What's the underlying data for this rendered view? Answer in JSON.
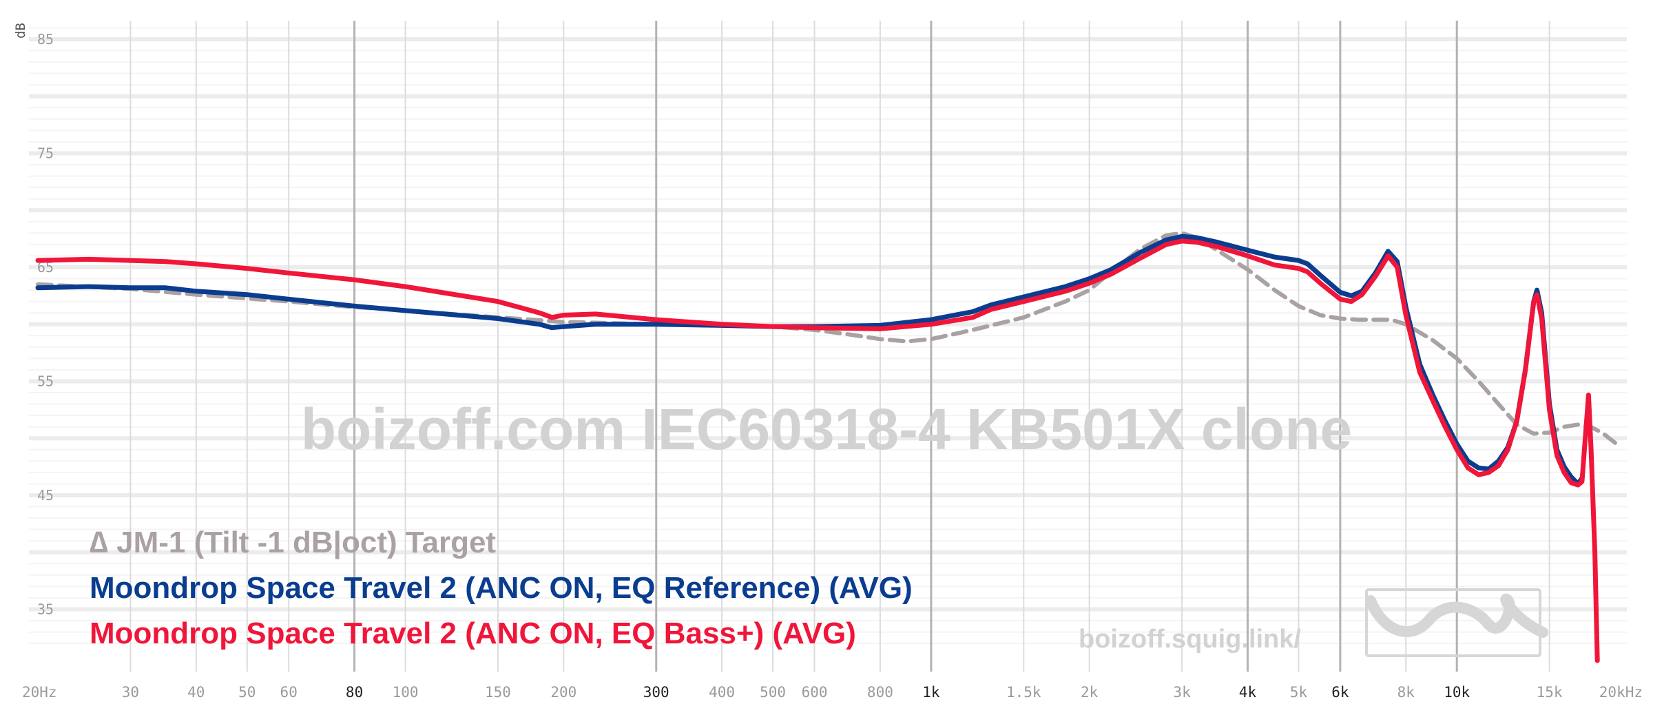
{
  "chart_data": {
    "type": "line",
    "ylabel": "dB",
    "x_scale": "log",
    "xlim": [
      20,
      20000
    ],
    "ylim": [
      30,
      87
    ],
    "grid": true,
    "legend_position": "bottom-left",
    "watermark": "boizoff.com IEC60318-4 KB501X clone",
    "site": "boizoff.squig.link/",
    "y_ticks": [
      {
        "value": 85,
        "label": "85"
      },
      {
        "value": 75,
        "label": "75"
      },
      {
        "value": 65,
        "label": "65"
      },
      {
        "value": 55,
        "label": "55"
      },
      {
        "value": 45,
        "label": "45"
      },
      {
        "value": 35,
        "label": "35"
      }
    ],
    "x_ticks": [
      {
        "value": 20,
        "label": "20Hz",
        "major": false
      },
      {
        "value": 30,
        "label": "30",
        "major": false
      },
      {
        "value": 40,
        "label": "40",
        "major": false
      },
      {
        "value": 50,
        "label": "50",
        "major": false
      },
      {
        "value": 60,
        "label": "60",
        "major": false
      },
      {
        "value": 80,
        "label": "80",
        "major": true
      },
      {
        "value": 100,
        "label": "100",
        "major": false
      },
      {
        "value": 150,
        "label": "150",
        "major": false
      },
      {
        "value": 200,
        "label": "200",
        "major": false
      },
      {
        "value": 300,
        "label": "300",
        "major": true
      },
      {
        "value": 400,
        "label": "400",
        "major": false
      },
      {
        "value": 500,
        "label": "500",
        "major": false
      },
      {
        "value": 600,
        "label": "600",
        "major": false
      },
      {
        "value": 800,
        "label": "800",
        "major": false
      },
      {
        "value": 1000,
        "label": "1k",
        "major": true
      },
      {
        "value": 1500,
        "label": "1.5k",
        "major": false
      },
      {
        "value": 2000,
        "label": "2k",
        "major": false
      },
      {
        "value": 3000,
        "label": "3k",
        "major": false
      },
      {
        "value": 4000,
        "label": "4k",
        "major": true
      },
      {
        "value": 5000,
        "label": "5k",
        "major": false
      },
      {
        "value": 6000,
        "label": "6k",
        "major": true
      },
      {
        "value": 8000,
        "label": "8k",
        "major": false
      },
      {
        "value": 10000,
        "label": "10k",
        "major": true
      },
      {
        "value": 15000,
        "label": "15k",
        "major": false
      },
      {
        "value": 20000,
        "label": "20kHz",
        "major": false
      }
    ],
    "series": [
      {
        "name": "∆ JM-1 (Tilt -1 dB|oct) Target",
        "color": "#aaa1a3",
        "dashed": true,
        "points": [
          [
            20,
            63.5
          ],
          [
            30,
            63.1
          ],
          [
            40,
            62.6
          ],
          [
            60,
            62.0
          ],
          [
            80,
            61.5
          ],
          [
            100,
            61.2
          ],
          [
            150,
            60.6
          ],
          [
            200,
            60.2
          ],
          [
            300,
            60.0
          ],
          [
            400,
            59.9
          ],
          [
            500,
            59.8
          ],
          [
            600,
            59.5
          ],
          [
            700,
            59.1
          ],
          [
            800,
            58.7
          ],
          [
            900,
            58.5
          ],
          [
            1000,
            58.7
          ],
          [
            1200,
            59.5
          ],
          [
            1500,
            60.6
          ],
          [
            1800,
            62.0
          ],
          [
            2000,
            63.0
          ],
          [
            2200,
            64.6
          ],
          [
            2500,
            66.6
          ],
          [
            2800,
            67.8
          ],
          [
            3000,
            68.0
          ],
          [
            3200,
            67.6
          ],
          [
            3500,
            66.5
          ],
          [
            4000,
            64.8
          ],
          [
            4500,
            63.0
          ],
          [
            5000,
            61.6
          ],
          [
            5500,
            60.8
          ],
          [
            6000,
            60.5
          ],
          [
            6500,
            60.4
          ],
          [
            7000,
            60.4
          ],
          [
            7500,
            60.4
          ],
          [
            8000,
            60.0
          ],
          [
            9000,
            58.6
          ],
          [
            10000,
            57.0
          ],
          [
            11000,
            55.0
          ],
          [
            12000,
            53.0
          ],
          [
            13000,
            51.2
          ],
          [
            14000,
            50.4
          ],
          [
            15000,
            50.5
          ],
          [
            16000,
            51.0
          ],
          [
            17000,
            51.2
          ],
          [
            18000,
            51.0
          ],
          [
            19000,
            50.4
          ],
          [
            20000,
            49.6
          ]
        ]
      },
      {
        "name": "Moondrop Space Travel 2 (ANC ON, EQ Reference) (AVG)",
        "color": "#0a3d8f",
        "dashed": false,
        "points": [
          [
            20,
            63.2
          ],
          [
            25,
            63.3
          ],
          [
            30,
            63.2
          ],
          [
            35,
            63.2
          ],
          [
            40,
            62.9
          ],
          [
            50,
            62.6
          ],
          [
            60,
            62.2
          ],
          [
            80,
            61.6
          ],
          [
            100,
            61.2
          ],
          [
            150,
            60.5
          ],
          [
            180,
            60.0
          ],
          [
            190,
            59.7
          ],
          [
            200,
            59.8
          ],
          [
            230,
            60.0
          ],
          [
            300,
            60.0
          ],
          [
            400,
            59.9
          ],
          [
            500,
            59.8
          ],
          [
            600,
            59.8
          ],
          [
            800,
            59.9
          ],
          [
            1000,
            60.4
          ],
          [
            1200,
            61.1
          ],
          [
            1300,
            61.7
          ],
          [
            1500,
            62.4
          ],
          [
            1800,
            63.3
          ],
          [
            2000,
            64.0
          ],
          [
            2200,
            64.8
          ],
          [
            2500,
            66.3
          ],
          [
            2800,
            67.4
          ],
          [
            3000,
            67.7
          ],
          [
            3200,
            67.6
          ],
          [
            3500,
            67.2
          ],
          [
            4000,
            66.5
          ],
          [
            4500,
            65.9
          ],
          [
            5000,
            65.6
          ],
          [
            5200,
            65.3
          ],
          [
            5500,
            64.3
          ],
          [
            6000,
            62.8
          ],
          [
            6300,
            62.5
          ],
          [
            6600,
            62.9
          ],
          [
            7000,
            64.5
          ],
          [
            7400,
            66.4
          ],
          [
            7700,
            65.5
          ],
          [
            8000,
            61.5
          ],
          [
            8500,
            56.5
          ],
          [
            9000,
            53.8
          ],
          [
            9500,
            51.5
          ],
          [
            10000,
            49.5
          ],
          [
            10500,
            48.0
          ],
          [
            11000,
            47.4
          ],
          [
            11500,
            47.3
          ],
          [
            12000,
            48.0
          ],
          [
            12500,
            49.2
          ],
          [
            13000,
            51.5
          ],
          [
            13500,
            56.0
          ],
          [
            14000,
            62.0
          ],
          [
            14200,
            63.0
          ],
          [
            14500,
            61.0
          ],
          [
            15000,
            53.0
          ],
          [
            15500,
            49.0
          ],
          [
            16000,
            47.5
          ],
          [
            16500,
            46.6
          ],
          [
            17000,
            46.0
          ],
          [
            17300,
            46.5
          ]
        ]
      },
      {
        "name": "Moondrop Space Travel 2 (ANC ON, EQ Bass+) (AVG)",
        "color": "#f0163a",
        "dashed": false,
        "points": [
          [
            20,
            65.6
          ],
          [
            25,
            65.7
          ],
          [
            30,
            65.6
          ],
          [
            35,
            65.5
          ],
          [
            40,
            65.3
          ],
          [
            50,
            64.9
          ],
          [
            60,
            64.5
          ],
          [
            80,
            63.9
          ],
          [
            100,
            63.3
          ],
          [
            150,
            62.0
          ],
          [
            180,
            61.0
          ],
          [
            190,
            60.6
          ],
          [
            200,
            60.8
          ],
          [
            230,
            60.9
          ],
          [
            300,
            60.4
          ],
          [
            400,
            60.0
          ],
          [
            500,
            59.8
          ],
          [
            600,
            59.7
          ],
          [
            800,
            59.6
          ],
          [
            1000,
            60.0
          ],
          [
            1200,
            60.6
          ],
          [
            1300,
            61.3
          ],
          [
            1500,
            62.0
          ],
          [
            1800,
            62.9
          ],
          [
            2000,
            63.6
          ],
          [
            2200,
            64.4
          ],
          [
            2500,
            65.8
          ],
          [
            2800,
            67.0
          ],
          [
            3000,
            67.3
          ],
          [
            3200,
            67.2
          ],
          [
            3500,
            66.8
          ],
          [
            4000,
            66.0
          ],
          [
            4500,
            65.2
          ],
          [
            5000,
            64.9
          ],
          [
            5200,
            64.6
          ],
          [
            5500,
            63.6
          ],
          [
            6000,
            62.2
          ],
          [
            6300,
            62.0
          ],
          [
            6600,
            62.6
          ],
          [
            7000,
            64.2
          ],
          [
            7400,
            66.0
          ],
          [
            7700,
            65.0
          ],
          [
            8000,
            60.8
          ],
          [
            8500,
            55.8
          ],
          [
            9000,
            53.3
          ],
          [
            9500,
            51.0
          ],
          [
            10000,
            49.0
          ],
          [
            10500,
            47.4
          ],
          [
            11000,
            46.8
          ],
          [
            11500,
            47.0
          ],
          [
            12000,
            47.6
          ],
          [
            12500,
            49.0
          ],
          [
            13000,
            51.5
          ],
          [
            13500,
            56.0
          ],
          [
            14000,
            62.0
          ],
          [
            14200,
            62.6
          ],
          [
            14500,
            60.5
          ],
          [
            15000,
            52.5
          ],
          [
            15500,
            48.5
          ],
          [
            16000,
            47.0
          ],
          [
            16500,
            46.1
          ],
          [
            17000,
            45.9
          ],
          [
            17300,
            46.2
          ],
          [
            17800,
            53.8
          ],
          [
            18000,
            49.0
          ],
          [
            18300,
            40.0
          ],
          [
            18500,
            30.5
          ]
        ]
      }
    ]
  }
}
